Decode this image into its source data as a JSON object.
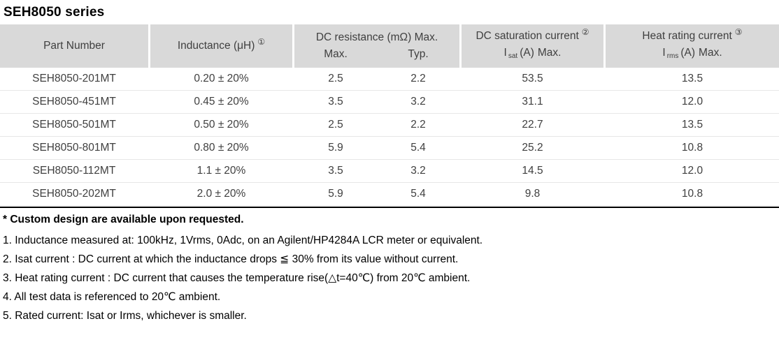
{
  "title": "SEH8050 series",
  "table": {
    "headers": {
      "part_number": "Part Number",
      "inductance": "Inductance (μH)",
      "inductance_note": "①",
      "dc_resistance": "DC resistance (mΩ) Max.",
      "dc_resistance_max": "Max.",
      "dc_resistance_typ": "Typ.",
      "dc_saturation": "DC saturation current",
      "dc_saturation_note": "②",
      "isat_i": "I",
      "isat_sub": "sat",
      "isat_rest": "(A)",
      "isat_max": "Max.",
      "heat_rating": "Heat rating current",
      "heat_rating_note": "③",
      "irms_i": "I",
      "irms_sub": "rms",
      "irms_rest": "(A)",
      "irms_max": "Max."
    },
    "rows": [
      {
        "part": "SEH8050-201MT",
        "inductance": "0.20 ± 20%",
        "res_max": "2.5",
        "res_typ": "2.2",
        "isat": "53.5",
        "irms": "13.5"
      },
      {
        "part": "SEH8050-451MT",
        "inductance": "0.45 ± 20%",
        "res_max": "3.5",
        "res_typ": "3.2",
        "isat": "31.1",
        "irms": "12.0"
      },
      {
        "part": "SEH8050-501MT",
        "inductance": "0.50 ± 20%",
        "res_max": "2.5",
        "res_typ": "2.2",
        "isat": "22.7",
        "irms": "13.5"
      },
      {
        "part": "SEH8050-801MT",
        "inductance": "0.80 ± 20%",
        "res_max": "5.9",
        "res_typ": "5.4",
        "isat": "25.2",
        "irms": "10.8"
      },
      {
        "part": "SEH8050-112MT",
        "inductance": "1.1 ± 20%",
        "res_max": "3.5",
        "res_typ": "3.2",
        "isat": "14.5",
        "irms": "12.0"
      },
      {
        "part": "SEH8050-202MT",
        "inductance": "2.0 ± 20%",
        "res_max": "5.9",
        "res_typ": "5.4",
        "isat": "9.8",
        "irms": "10.8"
      }
    ]
  },
  "notes": {
    "custom": "* Custom design are available upon requested.",
    "items": [
      "1. Inductance measured at: 100kHz, 1Vrms, 0Adc, on an Agilent/HP4284A LCR meter or equivalent.",
      "2. Isat current : DC current at which the inductance drops ≦ 30% from its value without current.",
      "3. Heat rating current : DC current that causes the temperature rise(△t=40℃) from 20℃ ambient.",
      "4. All test data is referenced to 20℃ ambient.",
      "5. Rated current: Isat or Irms, whichever is smaller."
    ]
  },
  "colors": {
    "header_bg": "#d9d9d9",
    "table_text": "#3f3f3f",
    "rule": "#000000"
  }
}
